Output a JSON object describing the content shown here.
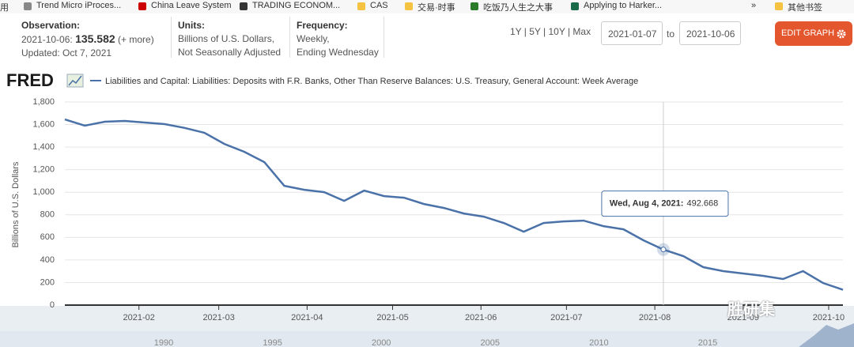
{
  "bookmarks": [
    "用",
    "Trend Micro iProces...",
    "China Leave System",
    "TRADING ECONOM...",
    "CAS",
    "交易·时事",
    "吃饭乃人生之大事",
    "Applying to Harker...",
    "»",
    "其他书签"
  ],
  "header": {
    "observation_title": "Observation:",
    "observation_date": "2021-10-06:",
    "more": "(+ more)",
    "updated": "Updated: Oct 7, 2021",
    "units_title": "Units:",
    "units_lines": [
      "Billions of U.S. Dollars,",
      "Not Seasonally Adjusted"
    ],
    "frequency_title": "Frequency:",
    "frequency_lines": [
      "Weekly,",
      "Ending Wednesday"
    ],
    "ranges": "1Y | 5Y | 10Y | Max",
    "date_from": "2021-01-07",
    "to": "to",
    "date_to": "2021-10-06",
    "edit": "EDIT GRAPH"
  },
  "brand": "FRED",
  "watermark": "胜研集",
  "navigator": {
    "labels": [
      "1990",
      "1995",
      "2000",
      "2005",
      "2010",
      "2015"
    ]
  },
  "chart_data": {
    "type": "line",
    "ylabel": "Billions of U.S. Dollars",
    "x": [
      "2021-01-06",
      "2021-01-13",
      "2021-01-20",
      "2021-01-27",
      "2021-02-03",
      "2021-02-10",
      "2021-02-17",
      "2021-02-24",
      "2021-03-03",
      "2021-03-10",
      "2021-03-17",
      "2021-03-24",
      "2021-03-31",
      "2021-04-07",
      "2021-04-14",
      "2021-04-21",
      "2021-04-28",
      "2021-05-05",
      "2021-05-12",
      "2021-05-19",
      "2021-05-26",
      "2021-06-02",
      "2021-06-09",
      "2021-06-16",
      "2021-06-23",
      "2021-06-30",
      "2021-07-07",
      "2021-07-14",
      "2021-07-21",
      "2021-07-28",
      "2021-08-04",
      "2021-08-11",
      "2021-08-18",
      "2021-08-25",
      "2021-09-01",
      "2021-09-08",
      "2021-09-15",
      "2021-09-22",
      "2021-09-29",
      "2021-10-06"
    ],
    "series": [
      {
        "name": "Liabilities and Capital: Liabilities: Deposits with F.R. Banks, Other Than Reserve Balances: U.S. Treasury, General Account: Week Average",
        "color": "#4a72a8",
        "values": [
          1645,
          1590,
          1625,
          1632,
          1618,
          1604,
          1570,
          1527,
          1428,
          1358,
          1267,
          1057,
          1022,
          1001,
          924,
          1015,
          966,
          952,
          896,
          861,
          812,
          784,
          728,
          651,
          728,
          742,
          749,
          700,
          672,
          574,
          492.668,
          434,
          336,
          301,
          280,
          259,
          231,
          301,
          196,
          135.582
        ]
      }
    ],
    "xlim": [
      "2021-01-06",
      "2021-10-06"
    ],
    "xticks": [
      {
        "value": "2021-02-01",
        "label": "2021-02"
      },
      {
        "value": "2021-03-01",
        "label": "2021-03"
      },
      {
        "value": "2021-04-01",
        "label": "2021-04"
      },
      {
        "value": "2021-05-01",
        "label": "2021-05"
      },
      {
        "value": "2021-06-01",
        "label": "2021-06"
      },
      {
        "value": "2021-07-01",
        "label": "2021-07"
      },
      {
        "value": "2021-08-01",
        "label": "2021-08"
      },
      {
        "value": "2021-09-01",
        "label": "2021-09"
      },
      {
        "value": "2021-10-01",
        "label": "2021-10"
      }
    ],
    "ylim": [
      0,
      1800
    ],
    "yticks": [
      0,
      200,
      400,
      600,
      800,
      {
        "value": 1000,
        "label": "1,000"
      },
      {
        "value": 1200,
        "label": "1,200"
      },
      {
        "value": 1400,
        "label": "1,400"
      },
      {
        "value": 1600,
        "label": "1,600"
      },
      {
        "value": 1800,
        "label": "1,800"
      }
    ],
    "grid": true,
    "tooltip": {
      "x": "2021-08-04",
      "label": "Wed, Aug 4, 2021:",
      "value": 492.668
    }
  }
}
